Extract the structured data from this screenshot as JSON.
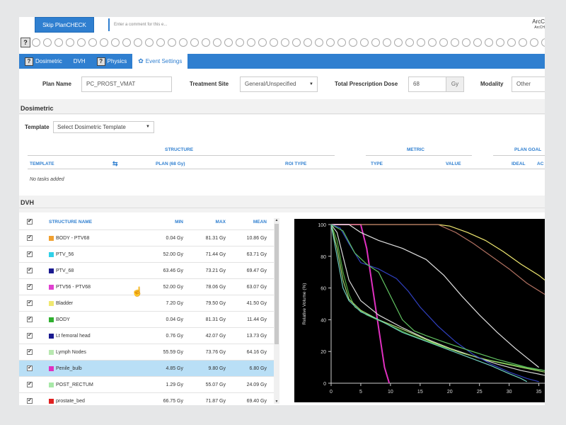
{
  "topbar": {
    "skip_label": "Skip PlanCHECK",
    "comment_placeholder": "Enter a comment for this e...",
    "brand_line1": "ArcC",
    "brand_line2": "ArcCH"
  },
  "help_glyph": "?",
  "tabs": [
    {
      "label": "Dosimetric",
      "icon": "help-icon"
    },
    {
      "label": "DVH",
      "icon": ""
    },
    {
      "label": "Physics",
      "icon": "help-icon"
    },
    {
      "label": "Event Settings",
      "icon": "gear-icon"
    }
  ],
  "plan": {
    "name_label": "Plan Name",
    "name_value": "PC_PROST_VMAT",
    "site_label": "Treatment Site",
    "site_value": "General/Unspecified",
    "dose_label": "Total Prescription Dose",
    "dose_value": "68",
    "dose_unit": "Gy",
    "modality_label": "Modality",
    "modality_value": "Other"
  },
  "dosimetric": {
    "title": "Dosimetric",
    "template_label": "Template",
    "template_select": "Select Dosimetric Template",
    "group_headers": {
      "structure": "STRUCTURE",
      "metric": "METRIC",
      "plan_goal": "PLAN GOAL"
    },
    "col_headers": {
      "template": "TEMPLATE",
      "plan": "PLAN (68 Gy)",
      "roi_type": "ROI TYPE",
      "type": "TYPE",
      "value": "VALUE",
      "ideal": "IDEAL",
      "ac": "AC"
    },
    "empty_text": "No tasks added"
  },
  "dvh": {
    "title": "DVH",
    "headers": {
      "name": "STRUCTURE NAME",
      "min": "MIN",
      "max": "MAX",
      "mean": "MEAN"
    },
    "rows": [
      {
        "name": "BODY - PTV68",
        "color": "#f0a030",
        "min": "0.04 Gy",
        "max": "81.31 Gy",
        "mean": "10.86 Gy"
      },
      {
        "name": "PTV_56",
        "color": "#30d0e8",
        "min": "52.00 Gy",
        "max": "71.44 Gy",
        "mean": "63.71 Gy"
      },
      {
        "name": "PTV_68",
        "color": "#1a1a90",
        "min": "63.46 Gy",
        "max": "73.21 Gy",
        "mean": "69.47 Gy"
      },
      {
        "name": "PTV56 - PTV68",
        "color": "#e040d0",
        "min": "52.00 Gy",
        "max": "78.06 Gy",
        "mean": "63.07 Gy"
      },
      {
        "name": "Bladder",
        "color": "#f0e870",
        "min": "7.20 Gy",
        "max": "79.50 Gy",
        "mean": "41.50 Gy"
      },
      {
        "name": "BODY",
        "color": "#30b030",
        "min": "0.04 Gy",
        "max": "81.31 Gy",
        "mean": "11.44 Gy"
      },
      {
        "name": "Lt femoral head",
        "color": "#1a1a90",
        "min": "0.76 Gy",
        "max": "42.07 Gy",
        "mean": "13.73 Gy"
      },
      {
        "name": "Lymph Nodes",
        "color": "#b8e8b0",
        "min": "55.59 Gy",
        "max": "73.76 Gy",
        "mean": "64.16 Gy"
      },
      {
        "name": "Penile_bulb",
        "color": "#e030c0",
        "min": "4.85 Gy",
        "max": "9.80 Gy",
        "mean": "6.80 Gy"
      },
      {
        "name": "POST_RECTUM",
        "color": "#a8e8a8",
        "min": "1.29 Gy",
        "max": "55.07 Gy",
        "mean": "24.09 Gy"
      },
      {
        "name": "prostate_bed",
        "color": "#e02020",
        "min": "66.75 Gy",
        "max": "71.87 Gy",
        "mean": "69.40 Gy"
      }
    ],
    "check_glyph": "✔",
    "selected_index": 8
  },
  "chart_data": {
    "type": "line",
    "title": "",
    "xlabel": "",
    "ylabel": "Relative Volume (%)",
    "xlim": [
      0,
      36
    ],
    "ylim": [
      0,
      100
    ],
    "x_ticks": [
      0,
      5,
      10,
      15,
      20,
      25,
      30,
      35
    ],
    "y_ticks": [
      0,
      20,
      40,
      60,
      80,
      100
    ],
    "background": "#000000",
    "grid": false,
    "series": [
      {
        "color": "#e030c0",
        "points": [
          [
            0,
            100
          ],
          [
            5,
            100
          ],
          [
            6,
            85
          ],
          [
            7,
            60
          ],
          [
            8,
            35
          ],
          [
            9,
            10
          ],
          [
            9.8,
            0
          ]
        ]
      },
      {
        "color": "#f0e870",
        "points": [
          [
            0,
            100
          ],
          [
            18,
            100
          ],
          [
            20,
            99
          ],
          [
            23,
            95
          ],
          [
            26,
            90
          ],
          [
            29,
            83
          ],
          [
            32,
            75
          ],
          [
            35,
            68
          ],
          [
            36,
            65
          ]
        ]
      },
      {
        "color": "#b07060",
        "points": [
          [
            0,
            100
          ],
          [
            18,
            100
          ],
          [
            21,
            95
          ],
          [
            24,
            88
          ],
          [
            27,
            80
          ],
          [
            30,
            72
          ],
          [
            33,
            63
          ],
          [
            36,
            56
          ]
        ]
      },
      {
        "color": "#e0e0e0",
        "points": [
          [
            0,
            100
          ],
          [
            3,
            100
          ],
          [
            5,
            95
          ],
          [
            8,
            90
          ],
          [
            12,
            85
          ],
          [
            16,
            78
          ],
          [
            19,
            68
          ],
          [
            22,
            55
          ],
          [
            25,
            43
          ],
          [
            28,
            32
          ],
          [
            31,
            22
          ],
          [
            33,
            16
          ],
          [
            35,
            10
          ]
        ]
      },
      {
        "color": "#d8d8d8",
        "points": [
          [
            0,
            100
          ],
          [
            1,
            95
          ],
          [
            2,
            80
          ],
          [
            3,
            65
          ],
          [
            5,
            52
          ],
          [
            8,
            43
          ],
          [
            12,
            35
          ],
          [
            16,
            28
          ],
          [
            20,
            22
          ],
          [
            24,
            17
          ],
          [
            28,
            12
          ],
          [
            32,
            8
          ],
          [
            36,
            5
          ]
        ]
      },
      {
        "color": "#50b040",
        "points": [
          [
            0,
            100
          ],
          [
            1,
            90
          ],
          [
            2,
            70
          ],
          [
            3,
            56
          ],
          [
            4,
            48
          ],
          [
            6,
            43
          ],
          [
            9,
            38
          ],
          [
            13,
            31
          ],
          [
            18,
            24
          ],
          [
            22,
            19
          ],
          [
            26,
            15
          ],
          [
            30,
            12
          ],
          [
            34,
            9
          ],
          [
            36,
            8
          ]
        ]
      },
      {
        "color": "#a8d870",
        "points": [
          [
            0,
            100
          ],
          [
            1,
            85
          ],
          [
            2,
            65
          ],
          [
            3,
            53
          ],
          [
            5,
            46
          ],
          [
            8,
            40
          ],
          [
            12,
            34
          ],
          [
            17,
            26
          ],
          [
            22,
            19
          ],
          [
            27,
            14
          ],
          [
            32,
            10
          ],
          [
            36,
            7
          ]
        ]
      },
      {
        "color": "#70d0c0",
        "points": [
          [
            0,
            100
          ],
          [
            1,
            80
          ],
          [
            2,
            60
          ],
          [
            3,
            52
          ],
          [
            5,
            45
          ],
          [
            8,
            40
          ],
          [
            12,
            32
          ],
          [
            17,
            25
          ],
          [
            22,
            18
          ],
          [
            27,
            11
          ],
          [
            30,
            6
          ],
          [
            32,
            3
          ],
          [
            33,
            1
          ]
        ]
      },
      {
        "color": "#3040c0",
        "points": [
          [
            0,
            100
          ],
          [
            1.5,
            98
          ],
          [
            3,
            88
          ],
          [
            5,
            76
          ],
          [
            8,
            72
          ],
          [
            11,
            66
          ],
          [
            13,
            58
          ],
          [
            15,
            48
          ],
          [
            18,
            36
          ],
          [
            21,
            26
          ],
          [
            24,
            18
          ],
          [
            27,
            12
          ],
          [
            30,
            7
          ],
          [
            33,
            3
          ],
          [
            35,
            1
          ]
        ]
      },
      {
        "color": "#60c060",
        "points": [
          [
            0,
            100
          ],
          [
            2,
            96
          ],
          [
            4,
            82
          ],
          [
            6,
            75
          ],
          [
            8,
            70
          ],
          [
            10,
            55
          ],
          [
            12,
            40
          ],
          [
            14,
            33
          ],
          [
            16,
            30
          ],
          [
            19,
            26
          ],
          [
            23,
            21
          ],
          [
            28,
            15
          ],
          [
            33,
            10
          ],
          [
            36,
            8
          ]
        ]
      }
    ]
  }
}
